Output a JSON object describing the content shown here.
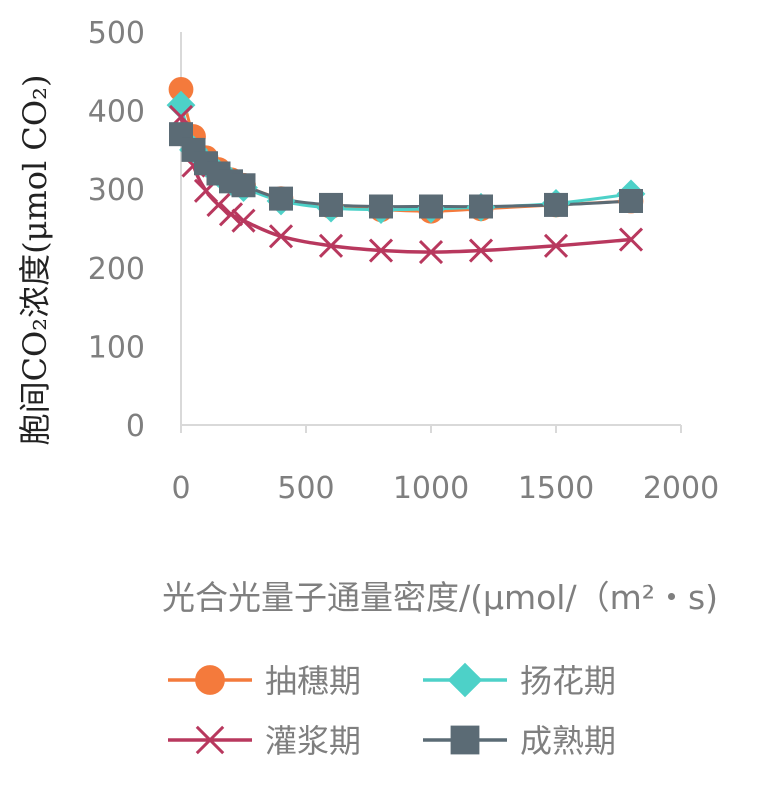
{
  "chart_data": {
    "type": "line",
    "ylabel": "胞间CO₂浓度(μmol CO₂)",
    "xlabel": "光合光量子通量密度/(μmol/（m²・s)",
    "xlim": [
      0,
      2000
    ],
    "ylim": [
      0,
      500
    ],
    "x_ticks": [
      "0",
      "500",
      "1000",
      "1500",
      "2000"
    ],
    "y_ticks": [
      "0",
      "100",
      "200",
      "300",
      "400",
      "500"
    ],
    "grid": false,
    "legend_position": "bottom",
    "series": [
      {
        "name": "抽穗期",
        "color": "#f47a3c",
        "marker": "circle",
        "x": [
          0,
          50,
          100,
          150,
          200,
          250,
          400,
          600,
          800,
          1000,
          1200,
          1500,
          1800
        ],
        "y": [
          427,
          367,
          340,
          325,
          312,
          305,
          288,
          278,
          274,
          272,
          275,
          280,
          285
        ]
      },
      {
        "name": "扬花期",
        "color": "#4dd1c8",
        "marker": "diamond",
        "x": [
          0,
          50,
          100,
          150,
          200,
          250,
          400,
          600,
          800,
          1000,
          1200,
          1500,
          1800
        ],
        "y": [
          407,
          350,
          333,
          320,
          310,
          302,
          285,
          276,
          274,
          275,
          277,
          282,
          294
        ]
      },
      {
        "name": "灌浆期",
        "color": "#b8385e",
        "marker": "x",
        "x": [
          0,
          50,
          100,
          150,
          200,
          250,
          400,
          600,
          800,
          1000,
          1200,
          1500,
          1800
        ],
        "y": [
          392,
          330,
          298,
          280,
          268,
          260,
          240,
          228,
          222,
          220,
          222,
          228,
          236
        ]
      },
      {
        "name": "成熟期",
        "color": "#5b6b75",
        "marker": "square",
        "x": [
          0,
          50,
          100,
          150,
          200,
          250,
          400,
          600,
          800,
          1000,
          1200,
          1500,
          1800
        ],
        "y": [
          370,
          350,
          333,
          320,
          310,
          305,
          288,
          280,
          278,
          278,
          278,
          280,
          285
        ]
      }
    ]
  }
}
